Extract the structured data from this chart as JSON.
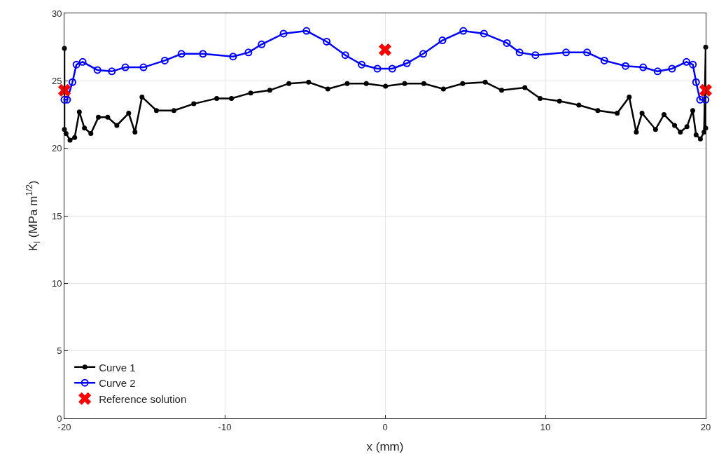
{
  "chart_data": {
    "type": "line",
    "xlabel": "x (mm)",
    "ylabel": "K$_{I}$ (MPa m$^{1/2}$)",
    "xlim": [
      -20,
      20
    ],
    "xticks": [
      -20,
      -10,
      0,
      10,
      20
    ],
    "ylim": [
      0,
      30
    ],
    "yticks": [
      0,
      5,
      10,
      15,
      20,
      25,
      30
    ],
    "grid": true,
    "legend": "bottom left",
    "series": [
      {
        "name": "Curve 1",
        "color": "#000000",
        "marker": "circle",
        "x": [
          -20.0,
          -20.0,
          -19.9,
          -19.65,
          -19.36,
          -19.07,
          -18.75,
          -18.35,
          -17.88,
          -17.3,
          -16.73,
          -15.99,
          -15.6,
          -15.16,
          -14.26,
          -13.17,
          -11.93,
          -10.5,
          -9.58,
          -8.38,
          -7.19,
          -6.0,
          -4.77,
          -3.57,
          -2.36,
          -1.17,
          0.03,
          1.22,
          2.42,
          3.64,
          4.84,
          6.25,
          7.27,
          8.72,
          9.67,
          10.88,
          12.09,
          13.27,
          14.48,
          15.23,
          15.67,
          16.03,
          16.87,
          17.4,
          18.06,
          18.42,
          18.83,
          19.19,
          19.4,
          19.67,
          19.9,
          20.0,
          20.0
        ],
        "values": [
          27.4,
          21.4,
          21.1,
          20.6,
          20.8,
          22.7,
          21.5,
          21.1,
          22.3,
          22.3,
          21.7,
          22.6,
          21.2,
          23.8,
          22.8,
          22.8,
          23.3,
          23.7,
          23.7,
          24.1,
          24.3,
          24.8,
          24.9,
          24.4,
          24.8,
          24.8,
          24.6,
          24.8,
          24.8,
          24.4,
          24.8,
          24.9,
          24.3,
          24.5,
          23.7,
          23.5,
          23.2,
          22.8,
          22.6,
          23.8,
          21.2,
          22.6,
          21.4,
          22.5,
          21.7,
          21.2,
          21.6,
          22.8,
          21.0,
          20.7,
          21.2,
          27.5,
          21.5
        ]
      },
      {
        "name": "Curve 2",
        "color": "#0000ff",
        "marker": "circle-open",
        "x": [
          -20.0,
          -19.83,
          -19.5,
          -19.25,
          -18.86,
          -17.94,
          -17.04,
          -16.2,
          -15.07,
          -13.74,
          -12.7,
          -11.36,
          -9.48,
          -8.52,
          -7.7,
          -6.33,
          -4.9,
          -3.64,
          -2.48,
          -1.46,
          -0.48,
          0.45,
          1.36,
          2.38,
          3.58,
          4.88,
          6.17,
          7.6,
          8.39,
          9.38,
          11.29,
          12.6,
          13.68,
          15.0,
          16.1,
          17.0,
          17.9,
          18.8,
          19.2,
          19.4,
          19.65,
          19.99
        ],
        "values": [
          23.6,
          23.6,
          24.9,
          26.2,
          26.4,
          25.8,
          25.7,
          26.0,
          26.0,
          26.5,
          27.0,
          27.0,
          26.8,
          27.1,
          27.7,
          28.5,
          28.7,
          27.9,
          26.9,
          26.2,
          25.9,
          25.9,
          26.3,
          27.0,
          28.0,
          28.7,
          28.5,
          27.8,
          27.1,
          26.9,
          27.1,
          27.1,
          26.5,
          26.1,
          26.0,
          25.7,
          25.9,
          26.4,
          26.2,
          24.9,
          23.6,
          23.6
        ]
      },
      {
        "name": "Reference solution",
        "type": "scatter",
        "color": "#ff0000",
        "marker": "x",
        "x": [
          -20,
          0,
          20
        ],
        "values": [
          24.3,
          27.3,
          24.3
        ]
      }
    ]
  }
}
